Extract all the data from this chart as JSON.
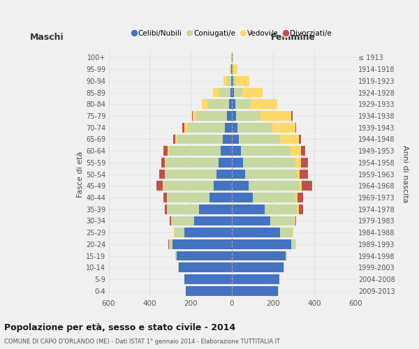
{
  "age_groups": [
    "0-4",
    "5-9",
    "10-14",
    "15-19",
    "20-24",
    "25-29",
    "30-34",
    "35-39",
    "40-44",
    "45-49",
    "50-54",
    "55-59",
    "60-64",
    "65-69",
    "70-74",
    "75-79",
    "80-84",
    "85-89",
    "90-94",
    "95-99",
    "100+"
  ],
  "birth_years": [
    "2009-2013",
    "2004-2008",
    "1999-2003",
    "1994-1998",
    "1989-1993",
    "1984-1988",
    "1979-1983",
    "1974-1978",
    "1969-1973",
    "1964-1968",
    "1959-1963",
    "1954-1958",
    "1949-1953",
    "1944-1948",
    "1939-1943",
    "1934-1938",
    "1929-1933",
    "1924-1928",
    "1919-1923",
    "1914-1918",
    "≤ 1913"
  ],
  "males": {
    "celibi": [
      225,
      230,
      260,
      270,
      290,
      230,
      185,
      160,
      110,
      90,
      75,
      65,
      55,
      45,
      35,
      25,
      15,
      8,
      5,
      3,
      2
    ],
    "coniugati": [
      1,
      2,
      2,
      5,
      15,
      50,
      110,
      155,
      205,
      245,
      250,
      255,
      250,
      220,
      180,
      150,
      100,
      55,
      20,
      4,
      1
    ],
    "vedovi": [
      0,
      0,
      0,
      1,
      2,
      2,
      2,
      2,
      2,
      2,
      3,
      5,
      8,
      10,
      15,
      15,
      30,
      30,
      15,
      5,
      1
    ],
    "divorziati": [
      0,
      0,
      0,
      0,
      1,
      2,
      5,
      10,
      15,
      30,
      25,
      20,
      20,
      10,
      10,
      5,
      0,
      0,
      0,
      0,
      0
    ]
  },
  "females": {
    "nubili": [
      225,
      230,
      250,
      260,
      290,
      235,
      185,
      160,
      100,
      80,
      65,
      55,
      45,
      35,
      28,
      20,
      15,
      10,
      5,
      3,
      2
    ],
    "coniugate": [
      1,
      1,
      3,
      8,
      20,
      60,
      120,
      160,
      210,
      250,
      250,
      255,
      240,
      200,
      170,
      120,
      75,
      40,
      15,
      5,
      1
    ],
    "vedove": [
      0,
      0,
      0,
      1,
      2,
      3,
      3,
      5,
      8,
      10,
      15,
      25,
      50,
      90,
      110,
      150,
      130,
      100,
      65,
      20,
      2
    ],
    "divorziate": [
      0,
      0,
      0,
      0,
      1,
      2,
      5,
      20,
      30,
      50,
      40,
      35,
      20,
      10,
      5,
      5,
      0,
      0,
      0,
      0,
      0
    ]
  },
  "colors": {
    "celibi": "#4472C4",
    "coniugati": "#C5D9A0",
    "vedovi": "#FFD966",
    "divorziati": "#C0504D"
  },
  "title": "Popolazione per età, sesso e stato civile - 2014",
  "subtitle": "COMUNE DI CAPO D'ORLANDO (ME) - Dati ISTAT 1° gennaio 2014 - Elaborazione TUTTITALIA.IT",
  "xlabel_left": "Maschi",
  "xlabel_right": "Femmine",
  "ylabel_left": "Fasce di età",
  "ylabel_right": "Anni di nascita",
  "xlim": 600,
  "legend_labels": [
    "Celibi/Nubili",
    "Coniugati/e",
    "Vedovi/e",
    "Divorziati/e"
  ],
  "bg_color": "#f0f0f0"
}
